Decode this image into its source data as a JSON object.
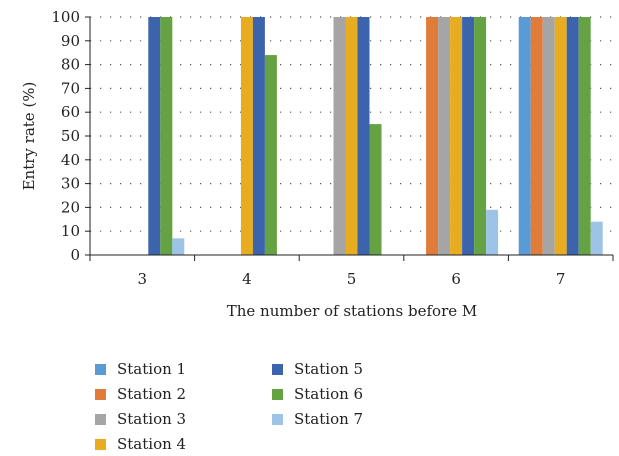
{
  "chart_data": {
    "type": "bar",
    "xlabel": "The number of stations before M",
    "ylabel": "Entry rate (%)",
    "ylim": [
      0,
      100
    ],
    "yticks": [
      0,
      10,
      20,
      30,
      40,
      50,
      60,
      70,
      80,
      90,
      100
    ],
    "categories": [
      "3",
      "4",
      "5",
      "6",
      "7"
    ],
    "grid": "dotted",
    "legend_position": "bottom",
    "series": [
      {
        "name": "Station 1",
        "color": "#5b9bd5",
        "values": [
          null,
          null,
          null,
          null,
          100
        ]
      },
      {
        "name": "Station 2",
        "color": "#e07b39",
        "values": [
          null,
          null,
          null,
          100,
          100
        ]
      },
      {
        "name": "Station 3",
        "color": "#a5a5a5",
        "values": [
          null,
          null,
          100,
          100,
          100
        ]
      },
      {
        "name": "Station 4",
        "color": "#e8ac20",
        "values": [
          null,
          100,
          100,
          100,
          100
        ]
      },
      {
        "name": "Station 5",
        "color": "#3c64ad",
        "values": [
          100,
          100,
          100,
          100,
          100
        ]
      },
      {
        "name": "Station 6",
        "color": "#64a243",
        "values": [
          100,
          84,
          55,
          100,
          100
        ]
      },
      {
        "name": "Station 7",
        "color": "#9dc3e6",
        "values": [
          7,
          null,
          null,
          19,
          14
        ]
      }
    ]
  }
}
